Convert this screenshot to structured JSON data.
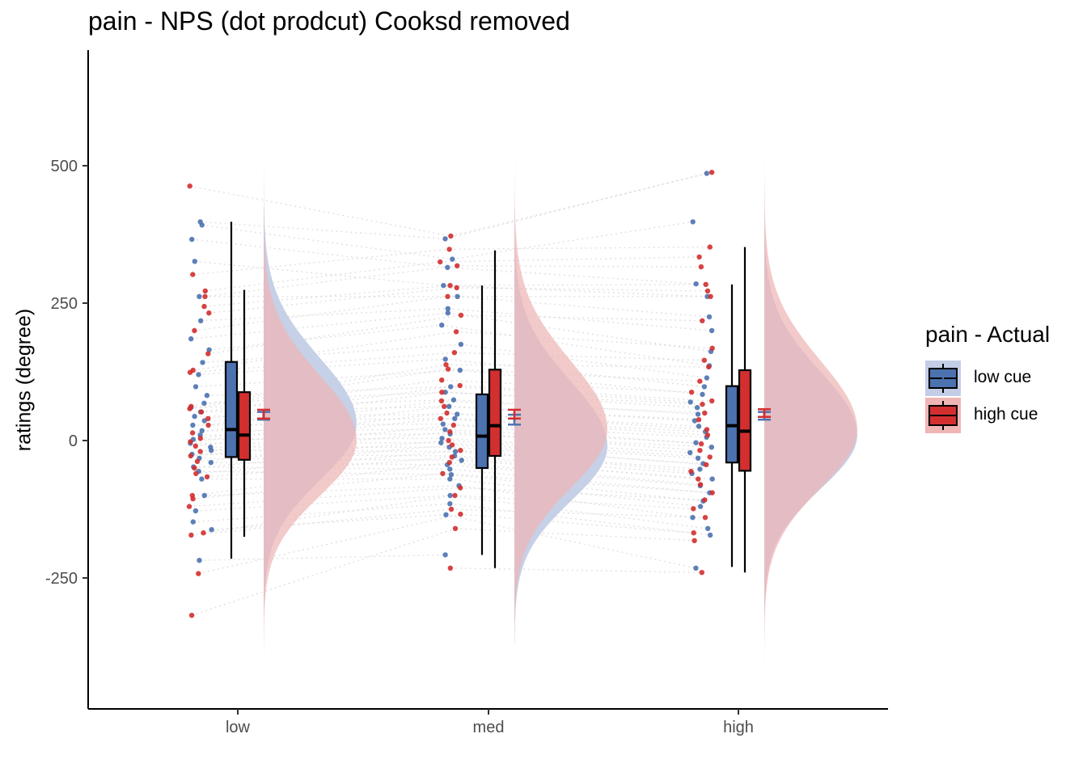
{
  "chart_data": {
    "type": "raincloud",
    "title": "pain  - NPS (dot prodcut) Cooksd removed",
    "xlabel": "",
    "ylabel": "ratings (degree)",
    "categories": [
      "low",
      "med",
      "high"
    ],
    "yticks": [
      -250,
      0,
      250,
      500
    ],
    "ylim": [
      -485,
      700
    ],
    "legend": {
      "title": "pain  - Actual",
      "position": "right",
      "entries": [
        "low cue",
        "high cue"
      ]
    },
    "colors": {
      "low cue": "#4c72b0",
      "high cue": "#d32f2f",
      "low cue fill": "#c3cde6",
      "high cue fill": "#efb5b5",
      "overlap": "#c199a9"
    },
    "series": [
      {
        "name": "low cue",
        "box": [
          {
            "category": "low",
            "whisker_low": -215,
            "q1": -30,
            "median": 20,
            "q3": 143,
            "whisker_high": 398
          },
          {
            "category": "med",
            "whisker_low": -208,
            "q1": -50,
            "median": 8,
            "q3": 84,
            "whisker_high": 282
          },
          {
            "category": "high",
            "whisker_low": -230,
            "q1": -40,
            "median": 27,
            "q3": 99,
            "whisker_high": 284
          }
        ],
        "mean": [
          {
            "category": "low",
            "mean": 45,
            "se_low": 38,
            "se_high": 52
          },
          {
            "category": "med",
            "mean": 38,
            "se_low": 29,
            "se_high": 47
          },
          {
            "category": "high",
            "mean": 45,
            "se_low": 38,
            "se_high": 52
          }
        ],
        "density": [
          {
            "category": "low",
            "mode": 30,
            "sd": 120,
            "min": -400,
            "max": 560
          },
          {
            "category": "med",
            "mode": -10,
            "sd": 118,
            "min": -370,
            "max": 420
          },
          {
            "category": "high",
            "mode": 10,
            "sd": 115,
            "min": -360,
            "max": 560
          }
        ],
        "points": {
          "low": [
            398,
            392,
            366,
            326,
            262,
            218,
            185,
            165,
            142,
            120,
            98,
            82,
            68,
            60,
            52,
            44,
            36,
            28,
            18,
            10,
            2,
            -5,
            -12,
            -18,
            -25,
            -32,
            -40,
            -48,
            -56,
            -70,
            -100,
            -128,
            -148,
            -162,
            -218
          ],
          "med": [
            367,
            330,
            315,
            282,
            262,
            240,
            232,
            210,
            175,
            148,
            128,
            98,
            88,
            74,
            62,
            48,
            40,
            30,
            20,
            12,
            4,
            -4,
            -12,
            -20,
            -28,
            -36,
            -44,
            -52,
            -62,
            -70,
            -82,
            -100,
            -115,
            -135,
            -208
          ],
          "high": [
            486,
            398,
            285,
            262,
            225,
            200,
            162,
            136,
            114,
            98,
            84,
            70,
            60,
            48,
            36,
            26,
            16,
            6,
            -4,
            -12,
            -22,
            -32,
            -42,
            -52,
            -60,
            -70,
            -82,
            -95,
            -110,
            -120,
            -140,
            -160,
            -172,
            -232
          ]
        }
      },
      {
        "name": "high cue",
        "box": [
          {
            "category": "low",
            "whisker_low": -175,
            "q1": -35,
            "median": 10,
            "q3": 88,
            "whisker_high": 274
          },
          {
            "category": "med",
            "whisker_low": -232,
            "q1": -28,
            "median": 27,
            "q3": 129,
            "whisker_high": 346
          },
          {
            "category": "high",
            "whisker_low": -240,
            "q1": -55,
            "median": 17,
            "q3": 128,
            "whisker_high": 352
          }
        ],
        "mean": [
          {
            "category": "low",
            "mean": 48,
            "se_low": 40,
            "se_high": 56
          },
          {
            "category": "med",
            "mean": 48,
            "se_low": 40,
            "se_high": 56
          },
          {
            "category": "high",
            "mean": 50,
            "se_low": 43,
            "se_high": 57
          }
        ],
        "density": [
          {
            "category": "low",
            "mode": 0,
            "sd": 118,
            "min": -430,
            "max": 580
          },
          {
            "category": "med",
            "mode": 20,
            "sd": 125,
            "min": -380,
            "max": 520
          },
          {
            "category": "high",
            "mode": 20,
            "sd": 125,
            "min": -410,
            "max": 670
          }
        ],
        "points": {
          "low": [
            463,
            302,
            272,
            262,
            244,
            232,
            200,
            158,
            128,
            124,
            62,
            58,
            52,
            40,
            28,
            14,
            4,
            -2,
            -10,
            -20,
            -28,
            -38,
            -50,
            -60,
            -66,
            -100,
            -106,
            -120,
            -168,
            -172,
            -242,
            -318
          ],
          "med": [
            372,
            348,
            325,
            318,
            282,
            278,
            262,
            228,
            198,
            160,
            138,
            130,
            110,
            100,
            88,
            72,
            62,
            50,
            40,
            28,
            16,
            0,
            -8,
            -18,
            -30,
            -40,
            -60,
            -86,
            -100,
            -125,
            -134,
            -160,
            -232
          ],
          "high": [
            488,
            352,
            334,
            316,
            284,
            272,
            262,
            218,
            168,
            146,
            134,
            108,
            88,
            72,
            66,
            50,
            38,
            20,
            10,
            -6,
            -18,
            -30,
            -44,
            -56,
            -70,
            -80,
            -95,
            -108,
            -124,
            -140,
            -168,
            -182,
            -240
          ]
        }
      }
    ]
  }
}
